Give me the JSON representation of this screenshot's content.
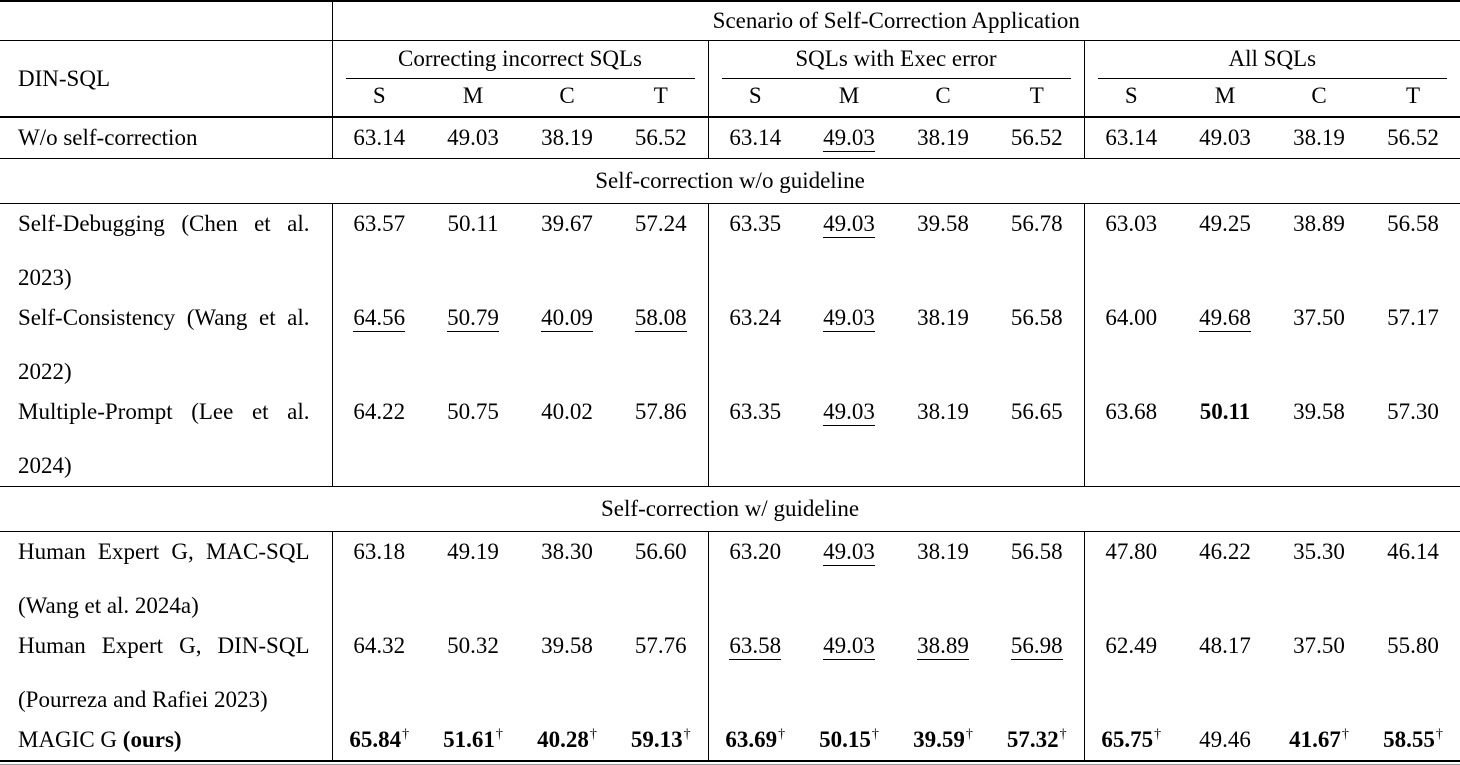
{
  "table": {
    "top_header": "Scenario of Self-Correction Application",
    "row_label_header": "DIN-SQL",
    "groups": [
      {
        "label": "Correcting incorrect SQLs"
      },
      {
        "label": "SQLs with Exec error"
      },
      {
        "label": "All SQLs"
      }
    ],
    "subcols": [
      "S",
      "M",
      "C",
      "T"
    ],
    "sections": [
      {
        "header": null,
        "rows": [
          {
            "lines": [
              "W/o self-correction"
            ],
            "cells": [
              {
                "v": "63.14"
              },
              {
                "v": "49.03"
              },
              {
                "v": "38.19"
              },
              {
                "v": "56.52"
              },
              {
                "v": "63.14"
              },
              {
                "v": "49.03",
                "u": true
              },
              {
                "v": "38.19"
              },
              {
                "v": "56.52"
              },
              {
                "v": "63.14"
              },
              {
                "v": "49.03"
              },
              {
                "v": "38.19"
              },
              {
                "v": "56.52"
              }
            ]
          }
        ]
      },
      {
        "header": "Self-correction w/o guideline",
        "rows": [
          {
            "lines": [
              "Self-Debugging (Chen et al.",
              "2023)"
            ],
            "cells": [
              {
                "v": "63.57"
              },
              {
                "v": "50.11"
              },
              {
                "v": "39.67"
              },
              {
                "v": "57.24"
              },
              {
                "v": "63.35"
              },
              {
                "v": "49.03",
                "u": true
              },
              {
                "v": "39.58"
              },
              {
                "v": "56.78"
              },
              {
                "v": "63.03"
              },
              {
                "v": "49.25"
              },
              {
                "v": "38.89"
              },
              {
                "v": "56.58"
              }
            ]
          },
          {
            "lines": [
              "Self-Consistency (Wang et al.",
              "2022)"
            ],
            "cells": [
              {
                "v": "64.56",
                "u": true
              },
              {
                "v": "50.79",
                "u": true
              },
              {
                "v": "40.09",
                "u": true
              },
              {
                "v": "58.08",
                "u": true
              },
              {
                "v": "63.24"
              },
              {
                "v": "49.03",
                "u": true
              },
              {
                "v": "38.19"
              },
              {
                "v": "56.58"
              },
              {
                "v": "64.00"
              },
              {
                "v": "49.68",
                "u": true
              },
              {
                "v": "37.50"
              },
              {
                "v": "57.17"
              }
            ]
          },
          {
            "lines": [
              "Multiple-Prompt (Lee et al.",
              "2024)"
            ],
            "cells": [
              {
                "v": "64.22"
              },
              {
                "v": "50.75"
              },
              {
                "v": "40.02"
              },
              {
                "v": "57.86"
              },
              {
                "v": "63.35"
              },
              {
                "v": "49.03",
                "u": true
              },
              {
                "v": "38.19"
              },
              {
                "v": "56.65"
              },
              {
                "v": "63.68"
              },
              {
                "v": "50.11",
                "b": true
              },
              {
                "v": "39.58"
              },
              {
                "v": "57.30"
              }
            ]
          }
        ]
      },
      {
        "header": "Self-correction w/ guideline",
        "rows": [
          {
            "lines": [
              "Human Expert G, MAC-SQL",
              "(Wang et al. 2024a)"
            ],
            "cells": [
              {
                "v": "63.18"
              },
              {
                "v": "49.19"
              },
              {
                "v": "38.30"
              },
              {
                "v": "56.60"
              },
              {
                "v": "63.20"
              },
              {
                "v": "49.03",
                "u": true
              },
              {
                "v": "38.19"
              },
              {
                "v": "56.58"
              },
              {
                "v": "47.80"
              },
              {
                "v": "46.22"
              },
              {
                "v": "35.30"
              },
              {
                "v": "46.14"
              }
            ]
          },
          {
            "lines": [
              "Human Expert G, DIN-SQL",
              "(Pourreza and Rafiei 2023)"
            ],
            "cells": [
              {
                "v": "64.32"
              },
              {
                "v": "50.32"
              },
              {
                "v": "39.58"
              },
              {
                "v": "57.76"
              },
              {
                "v": "63.58",
                "u": true
              },
              {
                "v": "49.03",
                "u": true
              },
              {
                "v": "38.89",
                "u": true
              },
              {
                "v": "56.98",
                "u": true
              },
              {
                "v": "62.49"
              },
              {
                "v": "48.17"
              },
              {
                "v": "37.50"
              },
              {
                "v": "55.80"
              }
            ]
          },
          {
            "label_parts": [
              {
                "t": "MAGIC G ",
                "b": false
              },
              {
                "t": "(ours)",
                "b": true
              }
            ],
            "cells": [
              {
                "v": "65.84",
                "b": true,
                "d": true
              },
              {
                "v": "51.61",
                "b": true,
                "d": true
              },
              {
                "v": "40.28",
                "b": true,
                "d": true
              },
              {
                "v": "59.13",
                "b": true,
                "d": true
              },
              {
                "v": "63.69",
                "b": true,
                "d": true
              },
              {
                "v": "50.15",
                "b": true,
                "d": true
              },
              {
                "v": "39.59",
                "b": true,
                "d": true
              },
              {
                "v": "57.32",
                "b": true,
                "d": true
              },
              {
                "v": "65.75",
                "b": true,
                "d": true
              },
              {
                "v": "49.46"
              },
              {
                "v": "41.67",
                "b": true,
                "d": true
              },
              {
                "v": "58.55",
                "b": true,
                "d": true
              }
            ]
          }
        ]
      }
    ]
  }
}
